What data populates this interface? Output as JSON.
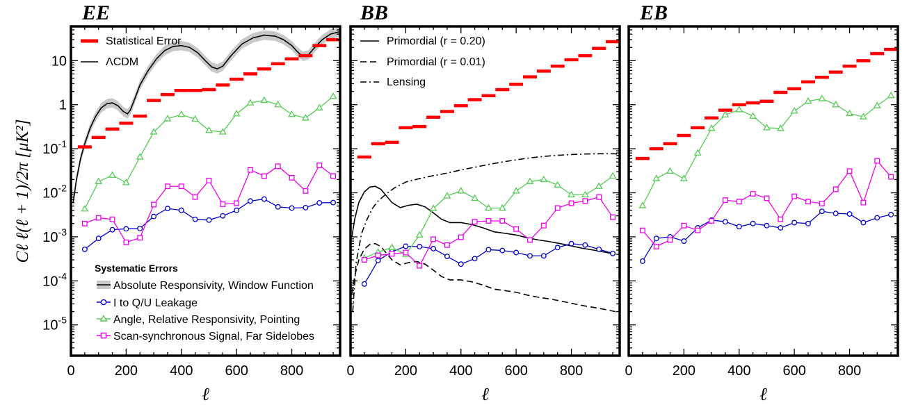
{
  "ylabel": "Cℓ ℓ(ℓ + 1)/2π  [μK²]",
  "xlabel": "ℓ",
  "yticks": [
    {
      "value": 1e-05,
      "mant": "10",
      "exp": "-5"
    },
    {
      "value": 0.0001,
      "mant": "10",
      "exp": "-4"
    },
    {
      "value": 0.001,
      "mant": "10",
      "exp": "-3"
    },
    {
      "value": 0.01,
      "mant": "10",
      "exp": "-2"
    },
    {
      "value": 0.1,
      "mant": "10",
      "exp": "-1"
    },
    {
      "value": 1,
      "label": "1"
    },
    {
      "value": 10,
      "label": "10"
    }
  ],
  "xticks": [
    {
      "value": 0,
      "label": "0"
    },
    {
      "value": 200,
      "label": "200"
    },
    {
      "value": 400,
      "label": "400"
    },
    {
      "value": 600,
      "label": "600"
    },
    {
      "value": 800,
      "label": "800"
    }
  ],
  "colors": {
    "stat_error": "#ff0000",
    "leakage": "#0000cc",
    "angle": "#55cc55",
    "scan_sync": "#ee00ee",
    "band": "#c8c8c8",
    "curve": "#000000"
  },
  "legend_title": "Systematic Errors",
  "chart_data": [
    {
      "type": "line",
      "title": "EE",
      "xlabel": "ℓ",
      "ylabel": "Cℓ ℓ(ℓ + 1)/2π  [μK²]",
      "xlim": [
        0,
        975
      ],
      "ylim": [
        2e-06,
        60
      ],
      "yscale": "log",
      "legend": [
        "Statistical Error",
        "ΛCDM"
      ],
      "systematics_legend": [
        "Absolute Responsivity, Window Function",
        "I to Q/U Leakage",
        "Angle, Relative Responsivity, Pointing",
        "Scan-synchronous Signal, Far Sidelobes"
      ],
      "x": [
        50,
        100,
        150,
        200,
        250,
        300,
        350,
        400,
        450,
        500,
        550,
        600,
        650,
        700,
        750,
        800,
        850,
        900,
        950
      ],
      "statistical_error": [
        0.11,
        0.18,
        0.28,
        0.38,
        0.55,
        1.25,
        1.7,
        2.1,
        2.1,
        2.2,
        2.8,
        3.8,
        5.0,
        6.5,
        8.5,
        11.0,
        13.0,
        22.0,
        30.0
      ],
      "lcdm": {
        "x": [
          8,
          20,
          35,
          50,
          70,
          90,
          110,
          130,
          150,
          170,
          190,
          205,
          215,
          230,
          250,
          280,
          310,
          340,
          370,
          400,
          430,
          460,
          490,
          510,
          530,
          550,
          580,
          620,
          660,
          700,
          740,
          770,
          800,
          820,
          840,
          860,
          880,
          910,
          940,
          970
        ],
        "y": [
          0.006,
          0.02,
          0.06,
          0.13,
          0.3,
          0.55,
          0.85,
          1.05,
          1.1,
          0.95,
          0.7,
          0.62,
          0.75,
          1.3,
          2.8,
          6.0,
          11.0,
          17.0,
          21.0,
          22.0,
          20.0,
          15.0,
          9.5,
          7.2,
          6.5,
          7.5,
          13.0,
          24.0,
          33.0,
          38.0,
          36.0,
          30.0,
          22.0,
          16.0,
          12.5,
          13.5,
          19.0,
          30.0,
          40.0,
          45.0
        ]
      },
      "series": [
        {
          "name": "I to Q/U Leakage",
          "values": [
            0.00052,
            0.00092,
            0.00145,
            0.00152,
            0.00155,
            0.0029,
            0.0044,
            0.004,
            0.0025,
            0.0024,
            0.003,
            0.004,
            0.0065,
            0.0072,
            0.0048,
            0.0045,
            0.0046,
            0.0059,
            0.006
          ]
        },
        {
          "name": "Angle, Relative Responsivity, Pointing",
          "values": [
            0.0043,
            0.018,
            0.025,
            0.017,
            0.065,
            0.24,
            0.48,
            0.6,
            0.47,
            0.26,
            0.24,
            0.62,
            1.1,
            1.25,
            1.0,
            0.6,
            0.5,
            0.85,
            1.55
          ]
        },
        {
          "name": "Scan-synchronous Signal, Far Sidelobes",
          "values": [
            0.002,
            0.0027,
            0.0025,
            0.00075,
            0.00095,
            0.0054,
            0.014,
            0.014,
            0.008,
            0.019,
            0.0055,
            0.0058,
            0.033,
            0.024,
            0.04,
            0.022,
            0.011,
            0.042,
            0.024
          ]
        }
      ]
    },
    {
      "type": "line",
      "title": "BB",
      "xlabel": "ℓ",
      "xlim": [
        0,
        975
      ],
      "ylim": [
        2e-06,
        60
      ],
      "yscale": "log",
      "legend": [
        "Primordial (r = 0.20)",
        "Primordial (r = 0.01)",
        "Lensing"
      ],
      "x": [
        50,
        100,
        150,
        200,
        250,
        300,
        350,
        400,
        450,
        500,
        550,
        600,
        650,
        700,
        750,
        800,
        850,
        900,
        950
      ],
      "statistical_error": [
        0.065,
        0.13,
        0.14,
        0.3,
        0.32,
        0.52,
        0.7,
        0.95,
        1.3,
        1.6,
        2.2,
        2.9,
        4.3,
        5.8,
        7.5,
        10.5,
        13.0,
        19.0,
        27.0
      ],
      "primordial_r020": {
        "x": [
          5,
          15,
          30,
          50,
          70,
          90,
          110,
          130,
          150,
          180,
          210,
          240,
          270,
          300,
          330,
          360,
          400,
          440,
          480,
          520,
          560,
          600,
          640,
          680,
          720,
          760,
          800,
          840,
          880,
          920,
          960
        ],
        "y": [
          0.001,
          0.0025,
          0.006,
          0.0105,
          0.0135,
          0.014,
          0.012,
          0.0085,
          0.006,
          0.0046,
          0.0052,
          0.0055,
          0.0048,
          0.0035,
          0.0025,
          0.0021,
          0.0021,
          0.0019,
          0.0016,
          0.0013,
          0.0012,
          0.0011,
          0.00095,
          0.00085,
          0.00078,
          0.0007,
          0.00062,
          0.00055,
          0.0005,
          0.00045,
          0.0004
        ]
      },
      "primordial_r001": {
        "x": [
          5,
          15,
          30,
          50,
          70,
          90,
          110,
          130,
          150,
          180,
          210,
          240,
          270,
          300,
          330,
          360,
          400,
          440,
          480,
          520,
          560,
          600,
          640,
          680,
          720,
          760,
          800,
          840,
          880,
          920,
          960
        ],
        "y": [
          5e-05,
          0.000125,
          0.0003,
          0.000525,
          0.000675,
          0.0007,
          0.0006,
          0.000425,
          0.0003,
          0.00023,
          0.00026,
          0.000275,
          0.00024,
          0.000175,
          0.000125,
          0.000105,
          0.000105,
          9.5e-05,
          8e-05,
          6.5e-05,
          6e-05,
          5.5e-05,
          4.75e-05,
          4.25e-05,
          3.9e-05,
          3.5e-05,
          3.1e-05,
          2.75e-05,
          2.5e-05,
          2.25e-05,
          2e-05
        ]
      },
      "lensing": {
        "x": [
          8,
          20,
          40,
          60,
          80,
          100,
          130,
          160,
          200,
          250,
          300,
          350,
          400,
          450,
          500,
          550,
          600,
          650,
          700,
          750,
          800,
          850,
          900,
          950,
          970
        ],
        "y": [
          2e-05,
          0.00025,
          0.0012,
          0.0025,
          0.0045,
          0.0065,
          0.0095,
          0.013,
          0.0175,
          0.021,
          0.0245,
          0.028,
          0.033,
          0.038,
          0.044,
          0.05,
          0.056,
          0.062,
          0.067,
          0.071,
          0.074,
          0.076,
          0.077,
          0.077,
          0.076
        ]
      },
      "series": [
        {
          "name": "I to Q/U Leakage",
          "values": [
            8.5e-05,
            0.00029,
            0.00046,
            0.00061,
            0.0006,
            0.00054,
            0.00036,
            0.00024,
            0.00032,
            0.00051,
            0.00049,
            0.00044,
            0.00037,
            0.00037,
            0.00057,
            0.0007,
            0.00065,
            0.00052,
            0.00042
          ]
        },
        {
          "name": "Angle, Relative Responsivity, Pointing",
          "values": [
            0.00033,
            0.00045,
            0.00057,
            0.0004,
            0.0011,
            0.0044,
            0.0085,
            0.011,
            0.0075,
            0.0045,
            0.0045,
            0.011,
            0.018,
            0.02,
            0.015,
            0.009,
            0.009,
            0.014,
            0.024
          ]
        },
        {
          "name": "Scan-synchronous Signal, Far Sidelobes",
          "values": [
            0.0003,
            0.00038,
            0.00041,
            0.00044,
            0.00022,
            0.00088,
            0.00065,
            0.00098,
            0.0022,
            0.0023,
            0.0023,
            0.0015,
            0.00085,
            0.0018,
            0.0045,
            0.0058,
            0.0065,
            0.008,
            0.0028
          ]
        }
      ]
    },
    {
      "type": "line",
      "title": "EB",
      "xlabel": "ℓ",
      "xlim": [
        0,
        975
      ],
      "ylim": [
        2e-06,
        60
      ],
      "yscale": "log",
      "x": [
        50,
        100,
        150,
        200,
        250,
        300,
        350,
        400,
        450,
        500,
        550,
        600,
        650,
        700,
        750,
        800,
        850,
        900,
        950
      ],
      "statistical_error": [
        0.06,
        0.1,
        0.13,
        0.2,
        0.3,
        0.5,
        0.75,
        1.0,
        1.1,
        1.2,
        1.9,
        2.3,
        3.3,
        4.2,
        5.5,
        7.5,
        10.0,
        14.5,
        18.0
      ],
      "series": [
        {
          "name": "I to Q/U Leakage",
          "values": [
            0.00028,
            0.00092,
            0.001,
            0.0008,
            0.0016,
            0.0024,
            0.0022,
            0.0017,
            0.002,
            0.0018,
            0.0016,
            0.0021,
            0.002,
            0.0038,
            0.0034,
            0.0033,
            0.0021,
            0.0027,
            0.0032
          ]
        },
        {
          "name": "Angle, Relative Responsivity, Pointing",
          "values": [
            0.0051,
            0.021,
            0.031,
            0.021,
            0.08,
            0.29,
            0.59,
            0.77,
            0.55,
            0.3,
            0.29,
            0.72,
            1.2,
            1.37,
            1.0,
            0.63,
            0.53,
            0.95,
            1.6
          ]
        },
        {
          "name": "Scan-synchronous Signal, Far Sidelobes",
          "values": [
            0.0014,
            0.0006,
            0.00085,
            0.0018,
            0.0014,
            0.0023,
            0.0068,
            0.0063,
            0.0095,
            0.0075,
            0.0025,
            0.0083,
            0.0063,
            0.0057,
            0.012,
            0.031,
            0.006,
            0.053,
            0.023
          ]
        }
      ]
    }
  ]
}
